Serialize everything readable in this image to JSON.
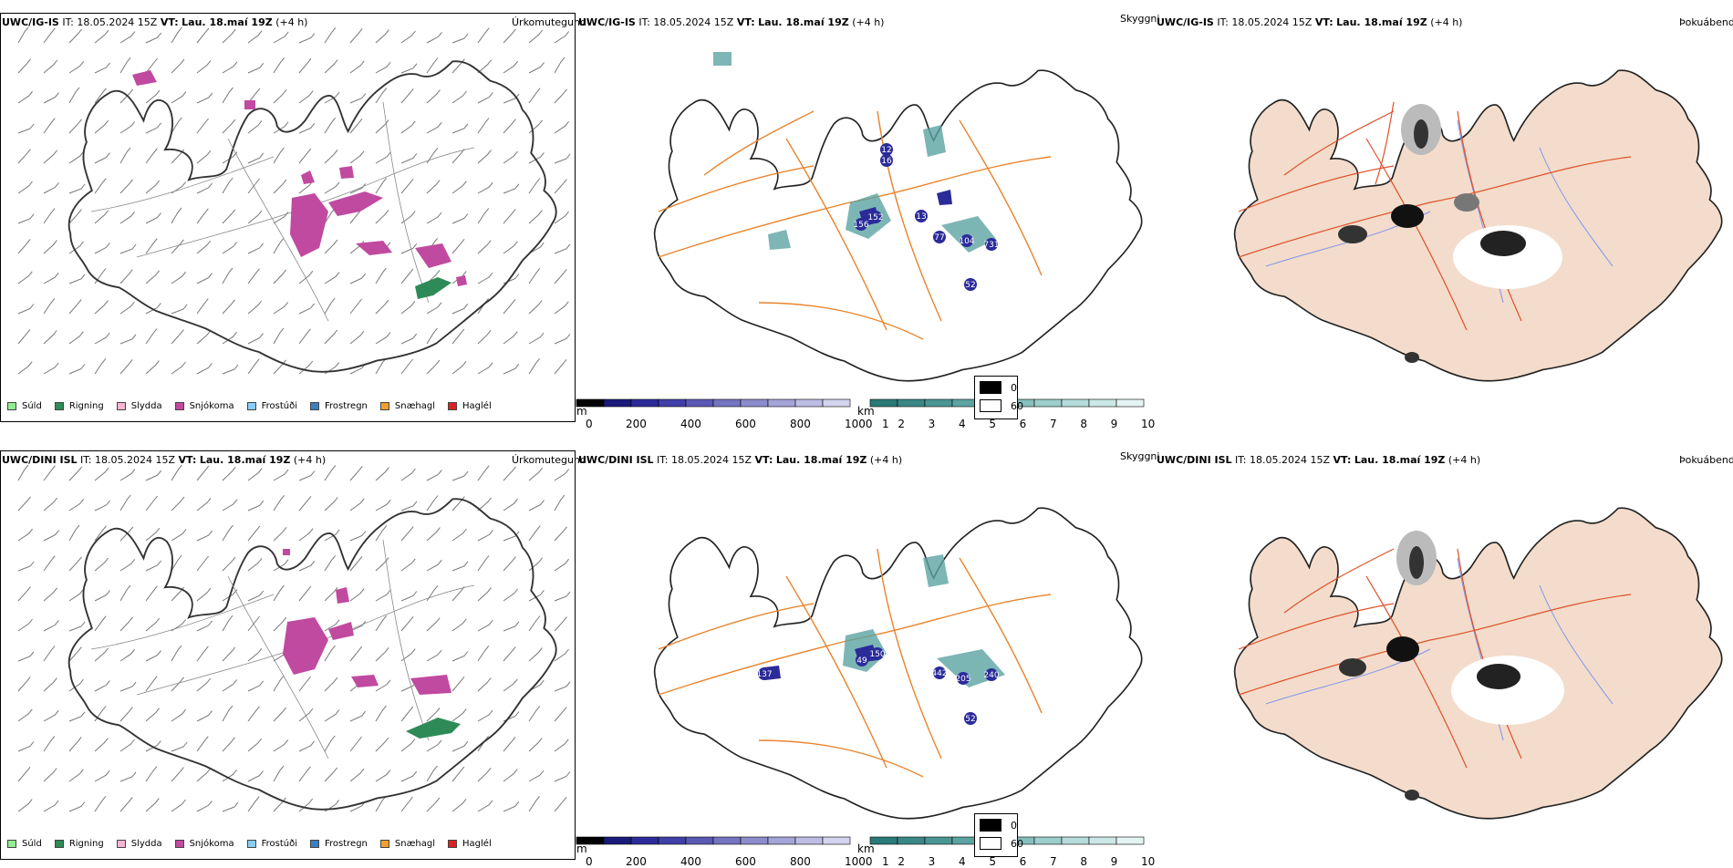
{
  "rows": [
    {
      "model": "UWC/IG-IS",
      "it_label": "IT:",
      "it_value": "18.05.2024 15Z",
      "vt_label": "VT:",
      "vt_value": "Lau. 18.maí 19Z",
      "lead": "(+4 h)"
    },
    {
      "model": "UWC/DINI ISL",
      "it_label": "IT:",
      "it_value": "18.05.2024 15Z",
      "vt_label": "VT:",
      "vt_value": "Lau. 18.maí 19Z",
      "lead": "(+4 h)"
    }
  ],
  "panel_titles": {
    "precip": "Úrkomutegund",
    "visibility": "Skyggni",
    "fog": "Þokuábendi"
  },
  "precip_legend": [
    {
      "label": "Súld",
      "color": "#90ee90"
    },
    {
      "label": "Rigning",
      "color": "#2e8b57"
    },
    {
      "label": "Slydda",
      "color": "#f4b6d2"
    },
    {
      "label": "Snjókoma",
      "color": "#c04aa0"
    },
    {
      "label": "Frostúði",
      "color": "#87cefa"
    },
    {
      "label": "Frostregn",
      "color": "#3a7fc0"
    },
    {
      "label": "Snæhagl",
      "color": "#f0a030"
    },
    {
      "label": "Haglél",
      "color": "#e02020"
    }
  ],
  "scale_m": {
    "unit": "m",
    "ticks": [
      "0",
      "200",
      "400",
      "600",
      "800",
      "1000"
    ],
    "colors": [
      "#000000",
      "#1a1a7a",
      "#2b2b9a",
      "#4040a8",
      "#5a5ab4",
      "#7474c0",
      "#8c8ccc",
      "#a4a4d8",
      "#bcbce4",
      "#d4d4ee"
    ]
  },
  "scale_km": {
    "unit": "km",
    "ticks": [
      "1",
      "2",
      "3",
      "4",
      "5",
      "6",
      "7",
      "8",
      "9",
      "10"
    ],
    "colors": [
      "#2a7a78",
      "#3a8886",
      "#4a9694",
      "#5ca4a2",
      "#70b2b0",
      "#86c0be",
      "#9ccecc",
      "#b4dcda",
      "#cce8e6",
      "#e4f4f2"
    ]
  },
  "fog_legend": [
    {
      "value": "0",
      "color": "#000000"
    },
    {
      "value": "60",
      "color": "#ffffff"
    }
  ],
  "visibility_labels_row1": [
    "12",
    "16",
    "156",
    "152",
    "13",
    "77",
    "104",
    "731",
    "52"
  ],
  "visibility_labels_row2": [
    "49",
    "150",
    "137",
    "442",
    "205",
    "240",
    "52"
  ]
}
